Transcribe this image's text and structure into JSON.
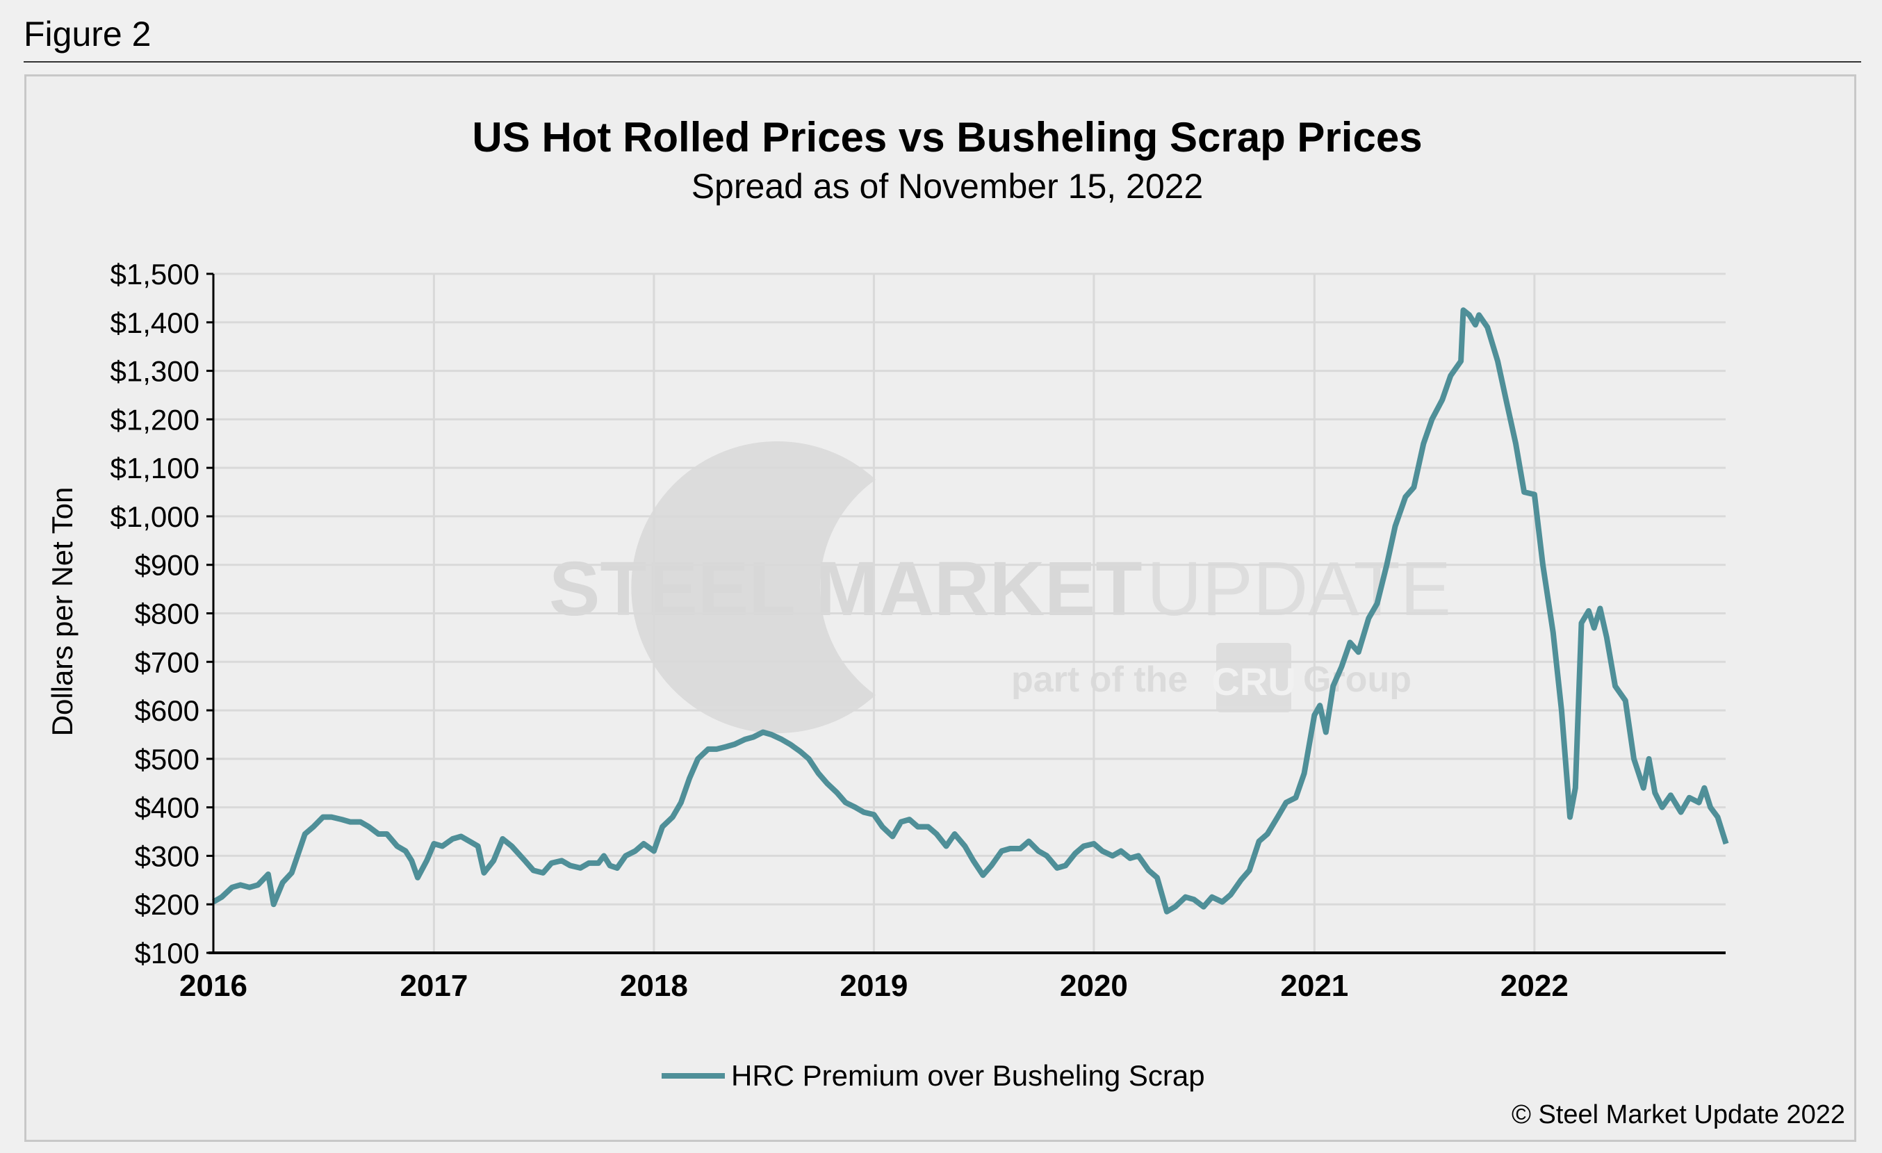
{
  "figure_label": "Figure 2",
  "copyright": "© Steel Market Update 2022",
  "watermark": {
    "line1_bold": "STEEL MARKET",
    "line1_light": "UPDATE",
    "line2a": "part of the",
    "line2_box": "CRU",
    "line2b": "Group"
  },
  "colors": {
    "series": "#4f8f98",
    "grid": "#d9d9d9",
    "background": "#eeeeee"
  },
  "chart_data": {
    "type": "line",
    "title": "US Hot Rolled Prices vs Busheling Scrap Prices",
    "subtitle": "Spread as of November 15, 2022",
    "xlabel": "",
    "ylabel": "Dollars per Net Ton",
    "ylim": [
      100,
      1500
    ],
    "xlim": [
      "2016-01-01",
      "2022-11-15"
    ],
    "yticks": [
      "$100",
      "$200",
      "$300",
      "$400",
      "$500",
      "$600",
      "$700",
      "$800",
      "$900",
      "$1,000",
      "$1,100",
      "$1,200",
      "$1,300",
      "$1,400",
      "$1,500"
    ],
    "xticks": [
      "2016",
      "2017",
      "2018",
      "2019",
      "2020",
      "2021",
      "2022"
    ],
    "grid": true,
    "legend_position": "bottom",
    "series": [
      {
        "name": "HRC Premium over Busheling Scrap",
        "points": [
          [
            "2016-01-01",
            205
          ],
          [
            "2016-01-15",
            215
          ],
          [
            "2016-02-01",
            235
          ],
          [
            "2016-02-15",
            240
          ],
          [
            "2016-03-01",
            235
          ],
          [
            "2016-03-15",
            240
          ],
          [
            "2016-04-01",
            262
          ],
          [
            "2016-04-10",
            200
          ],
          [
            "2016-04-25",
            245
          ],
          [
            "2016-05-10",
            265
          ],
          [
            "2016-06-01",
            345
          ],
          [
            "2016-06-15",
            360
          ],
          [
            "2016-07-01",
            380
          ],
          [
            "2016-07-15",
            380
          ],
          [
            "2016-08-01",
            375
          ],
          [
            "2016-08-15",
            370
          ],
          [
            "2016-09-01",
            370
          ],
          [
            "2016-09-15",
            360
          ],
          [
            "2016-10-01",
            345
          ],
          [
            "2016-10-15",
            345
          ],
          [
            "2016-11-01",
            320
          ],
          [
            "2016-11-15",
            310
          ],
          [
            "2016-11-25",
            290
          ],
          [
            "2016-12-05",
            255
          ],
          [
            "2016-12-20",
            290
          ],
          [
            "2017-01-01",
            325
          ],
          [
            "2017-01-15",
            320
          ],
          [
            "2017-02-01",
            335
          ],
          [
            "2017-02-15",
            340
          ],
          [
            "2017-03-01",
            330
          ],
          [
            "2017-03-15",
            320
          ],
          [
            "2017-03-25",
            265
          ],
          [
            "2017-04-10",
            290
          ],
          [
            "2017-04-25",
            335
          ],
          [
            "2017-05-10",
            320
          ],
          [
            "2017-06-01",
            290
          ],
          [
            "2017-06-15",
            270
          ],
          [
            "2017-07-01",
            265
          ],
          [
            "2017-07-15",
            285
          ],
          [
            "2017-08-01",
            290
          ],
          [
            "2017-08-15",
            280
          ],
          [
            "2017-09-01",
            275
          ],
          [
            "2017-09-15",
            285
          ],
          [
            "2017-10-01",
            285
          ],
          [
            "2017-10-10",
            300
          ],
          [
            "2017-10-20",
            280
          ],
          [
            "2017-11-01",
            275
          ],
          [
            "2017-11-15",
            300
          ],
          [
            "2017-12-01",
            310
          ],
          [
            "2017-12-15",
            325
          ],
          [
            "2018-01-01",
            310
          ],
          [
            "2018-01-15",
            360
          ],
          [
            "2018-02-01",
            380
          ],
          [
            "2018-02-15",
            410
          ],
          [
            "2018-03-01",
            460
          ],
          [
            "2018-03-15",
            500
          ],
          [
            "2018-04-01",
            520
          ],
          [
            "2018-04-15",
            520
          ],
          [
            "2018-05-01",
            525
          ],
          [
            "2018-05-15",
            530
          ],
          [
            "2018-06-01",
            540
          ],
          [
            "2018-06-15",
            545
          ],
          [
            "2018-07-01",
            555
          ],
          [
            "2018-07-15",
            550
          ],
          [
            "2018-08-01",
            540
          ],
          [
            "2018-08-15",
            530
          ],
          [
            "2018-09-01",
            515
          ],
          [
            "2018-09-15",
            500
          ],
          [
            "2018-10-01",
            470
          ],
          [
            "2018-10-15",
            450
          ],
          [
            "2018-11-01",
            430
          ],
          [
            "2018-11-15",
            410
          ],
          [
            "2018-12-01",
            400
          ],
          [
            "2018-12-15",
            390
          ],
          [
            "2019-01-01",
            385
          ],
          [
            "2019-01-15",
            360
          ],
          [
            "2019-02-01",
            340
          ],
          [
            "2019-02-15",
            370
          ],
          [
            "2019-03-01",
            375
          ],
          [
            "2019-03-15",
            360
          ],
          [
            "2019-04-01",
            360
          ],
          [
            "2019-04-15",
            345
          ],
          [
            "2019-05-01",
            320
          ],
          [
            "2019-05-15",
            345
          ],
          [
            "2019-06-01",
            320
          ],
          [
            "2019-06-15",
            290
          ],
          [
            "2019-07-01",
            260
          ],
          [
            "2019-07-15",
            280
          ],
          [
            "2019-08-01",
            310
          ],
          [
            "2019-08-15",
            315
          ],
          [
            "2019-09-01",
            315
          ],
          [
            "2019-09-15",
            330
          ],
          [
            "2019-10-01",
            310
          ],
          [
            "2019-10-15",
            300
          ],
          [
            "2019-11-01",
            275
          ],
          [
            "2019-11-15",
            280
          ],
          [
            "2019-12-01",
            305
          ],
          [
            "2019-12-15",
            320
          ],
          [
            "2020-01-01",
            325
          ],
          [
            "2020-01-15",
            310
          ],
          [
            "2020-02-01",
            300
          ],
          [
            "2020-02-15",
            310
          ],
          [
            "2020-03-01",
            295
          ],
          [
            "2020-03-15",
            300
          ],
          [
            "2020-04-01",
            270
          ],
          [
            "2020-04-15",
            255
          ],
          [
            "2020-05-01",
            185
          ],
          [
            "2020-05-15",
            195
          ],
          [
            "2020-06-01",
            215
          ],
          [
            "2020-06-15",
            210
          ],
          [
            "2020-07-01",
            195
          ],
          [
            "2020-07-15",
            215
          ],
          [
            "2020-08-01",
            205
          ],
          [
            "2020-08-15",
            220
          ],
          [
            "2020-09-01",
            250
          ],
          [
            "2020-09-15",
            270
          ],
          [
            "2020-10-01",
            330
          ],
          [
            "2020-10-15",
            345
          ],
          [
            "2020-11-01",
            380
          ],
          [
            "2020-11-15",
            410
          ],
          [
            "2020-12-01",
            420
          ],
          [
            "2020-12-15",
            470
          ],
          [
            "2021-01-01",
            590
          ],
          [
            "2021-01-10",
            610
          ],
          [
            "2021-01-20",
            555
          ],
          [
            "2021-02-01",
            650
          ],
          [
            "2021-02-15",
            690
          ],
          [
            "2021-03-01",
            740
          ],
          [
            "2021-03-15",
            720
          ],
          [
            "2021-04-01",
            790
          ],
          [
            "2021-04-15",
            820
          ],
          [
            "2021-05-01",
            900
          ],
          [
            "2021-05-15",
            980
          ],
          [
            "2021-06-01",
            1040
          ],
          [
            "2021-06-15",
            1060
          ],
          [
            "2021-07-01",
            1150
          ],
          [
            "2021-07-15",
            1200
          ],
          [
            "2021-08-01",
            1240
          ],
          [
            "2021-08-15",
            1290
          ],
          [
            "2021-09-01",
            1320
          ],
          [
            "2021-09-05",
            1425
          ],
          [
            "2021-09-15",
            1415
          ],
          [
            "2021-09-25",
            1395
          ],
          [
            "2021-10-01",
            1415
          ],
          [
            "2021-10-15",
            1390
          ],
          [
            "2021-11-01",
            1320
          ],
          [
            "2021-11-15",
            1240
          ],
          [
            "2021-12-01",
            1150
          ],
          [
            "2021-12-15",
            1050
          ],
          [
            "2022-01-01",
            1045
          ],
          [
            "2022-01-15",
            900
          ],
          [
            "2022-02-01",
            760
          ],
          [
            "2022-02-15",
            600
          ],
          [
            "2022-03-01",
            380
          ],
          [
            "2022-03-10",
            440
          ],
          [
            "2022-03-20",
            780
          ],
          [
            "2022-04-01",
            805
          ],
          [
            "2022-04-10",
            770
          ],
          [
            "2022-04-20",
            810
          ],
          [
            "2022-05-01",
            750
          ],
          [
            "2022-05-15",
            650
          ],
          [
            "2022-06-01",
            620
          ],
          [
            "2022-06-15",
            500
          ],
          [
            "2022-07-01",
            440
          ],
          [
            "2022-07-10",
            500
          ],
          [
            "2022-07-20",
            430
          ],
          [
            "2022-08-01",
            400
          ],
          [
            "2022-08-15",
            425
          ],
          [
            "2022-09-01",
            390
          ],
          [
            "2022-09-15",
            420
          ],
          [
            "2022-10-01",
            410
          ],
          [
            "2022-10-10",
            440
          ],
          [
            "2022-10-20",
            400
          ],
          [
            "2022-11-01",
            380
          ],
          [
            "2022-11-15",
            325
          ]
        ]
      }
    ]
  }
}
